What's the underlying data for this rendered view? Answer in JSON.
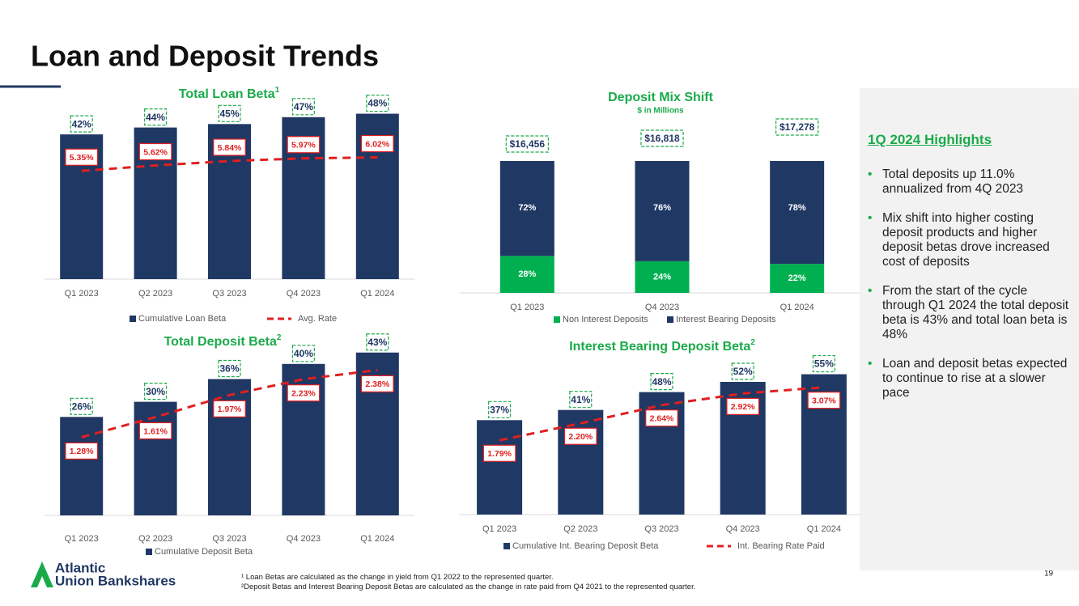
{
  "header": {
    "title": "Loan and Deposit Trends"
  },
  "chart_data": [
    {
      "type": "combo",
      "title": "Total Loan Beta",
      "title_note": "1",
      "categories": [
        "Q1 2023",
        "Q2 2023",
        "Q3 2023",
        "Q4 2023",
        "Q1 2024"
      ],
      "series": [
        {
          "name": "Cumulative Loan Beta",
          "color": "#203864",
          "values": [
            42,
            44,
            45,
            47,
            48
          ],
          "value_labels": [
            "42%",
            "44%",
            "45%",
            "47%",
            "48%"
          ]
        },
        {
          "name": "Avg. Rate",
          "color": "#e02020",
          "axis": "y2",
          "values": [
            5.35,
            5.62,
            5.84,
            5.97,
            6.02
          ],
          "value_labels": [
            "5.35%",
            "5.62%",
            "5.84%",
            "5.97%",
            "6.02%"
          ]
        }
      ],
      "ylim": [
        0,
        54
      ],
      "y2lim": [
        0,
        9.2
      ]
    },
    {
      "type": "stacked_bar",
      "title": "Deposit Mix Shift",
      "subtitle": "$ in Millions",
      "categories": [
        "Q1 2023",
        "Q4 2023",
        "Q1 2024"
      ],
      "series": [
        {
          "name": "Non Interest Deposits",
          "color": "#00b050",
          "values": [
            28,
            24,
            22
          ],
          "value_labels": [
            "28%",
            "24%",
            "22%"
          ]
        },
        {
          "name": "Interest Bearing Deposits",
          "color": "#203864",
          "values": [
            72,
            76,
            78
          ],
          "value_labels": [
            "72%",
            "76%",
            "78%"
          ]
        }
      ],
      "totals": {
        "values": [
          16456,
          16818,
          17278
        ],
        "value_labels": [
          "$16,456",
          "$16,818",
          "$17,278"
        ]
      },
      "ylim": [
        0,
        100
      ]
    },
    {
      "type": "combo",
      "title": "Total Deposit Beta",
      "title_note": "2",
      "categories": [
        "Q1 2023",
        "Q2 2023",
        "Q3 2023",
        "Q4 2023",
        "Q1 2024"
      ],
      "series": [
        {
          "name": "Cumulative Deposit Beta",
          "color": "#203864",
          "values": [
            26,
            30,
            36,
            40,
            43
          ],
          "value_labels": [
            "26%",
            "30%",
            "36%",
            "40%",
            "43%"
          ]
        },
        {
          "color": "#e02020",
          "axis": "y2",
          "values": [
            1.28,
            1.61,
            1.97,
            2.23,
            2.38
          ],
          "value_labels": [
            "1.28%",
            "1.61%",
            "1.97%",
            "2.23%",
            "2.38%"
          ]
        }
      ],
      "ylim": [
        0,
        50
      ],
      "y2lim": [
        0,
        3.1
      ]
    },
    {
      "type": "combo",
      "title": "Interest Bearing Deposit Beta",
      "title_note": "2",
      "categories": [
        "Q1 2023",
        "Q2 2023",
        "Q3 2023",
        "Q4 2023",
        "Q1 2024"
      ],
      "series": [
        {
          "name": "Cumulative Int. Bearing Deposit Beta",
          "color": "#203864",
          "values": [
            37,
            41,
            48,
            52,
            55
          ],
          "value_labels": [
            "37%",
            "41%",
            "48%",
            "52%",
            "55%"
          ]
        },
        {
          "name": "Int. Bearing Rate Paid",
          "color": "#e02020",
          "axis": "y2",
          "values": [
            1.79,
            2.2,
            2.64,
            2.92,
            3.07
          ],
          "value_labels": [
            "1.79%",
            "2.20%",
            "2.64%",
            "2.92%",
            "3.07%"
          ]
        }
      ],
      "ylim": [
        0,
        65
      ],
      "y2lim": [
        0,
        4
      ]
    }
  ],
  "highlights": {
    "title": "1Q 2024 Highlights",
    "bullets": [
      "Total deposits up 11.0% annualized from 4Q 2023",
      "Mix shift into higher costing deposit products and higher deposit betas drove increased cost of deposits",
      "From the start of the cycle through Q1 2024 the total deposit beta is 43% and total loan beta is 48%",
      "Loan and deposit betas expected to continue to rise at a slower pace"
    ]
  },
  "footnotes": [
    "¹ Loan Betas are calculated as the change in yield from Q1 2022 to the represented quarter.",
    "²Deposit Betas and Interest Bearing Deposit Betas are calculated as the change in rate paid from Q4 2021 to the represented quarter."
  ],
  "logo": [
    "Atlantic",
    "Union Bankshares"
  ],
  "page_number": "19"
}
